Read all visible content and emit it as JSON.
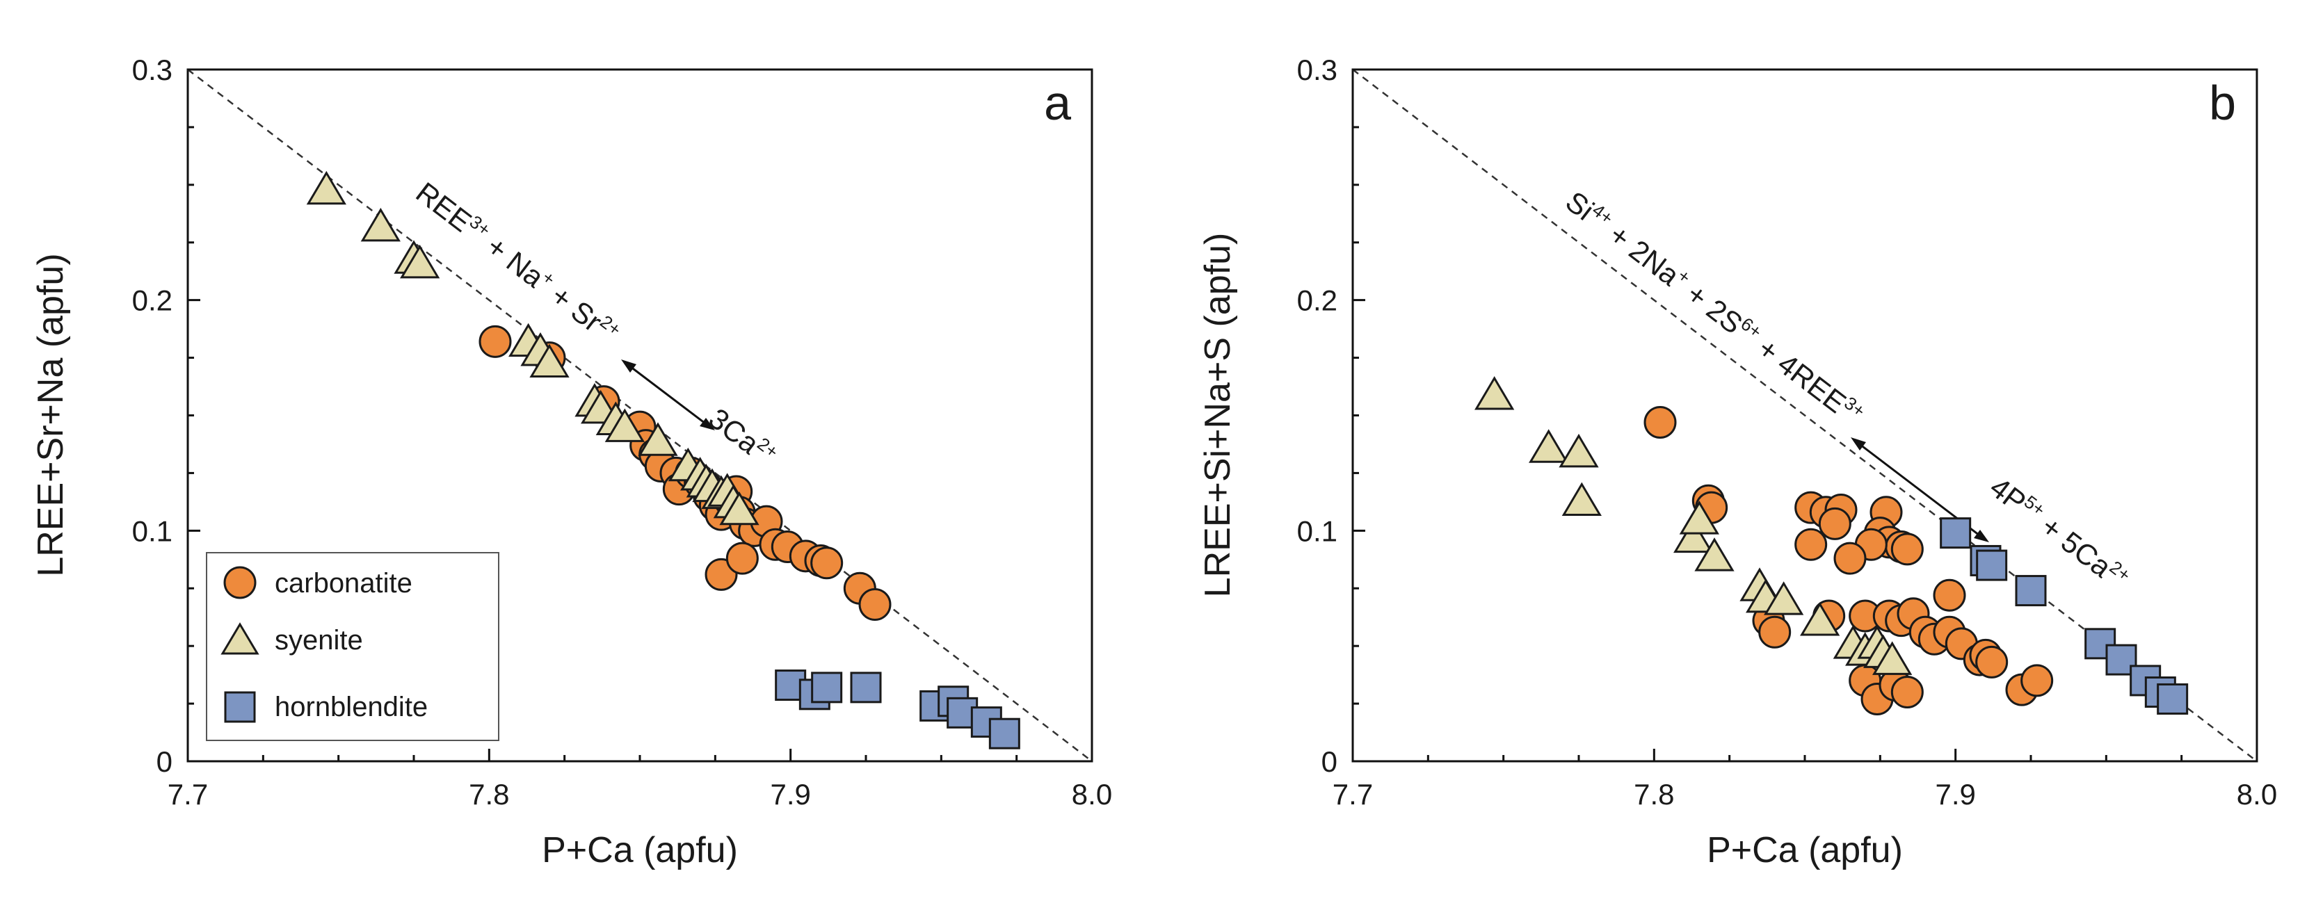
{
  "colors": {
    "carbonatite": "#EE8A3C",
    "syenite": "#E4DDAE",
    "hornblendite": "#7D95C2"
  },
  "chart_data": [
    {
      "type": "scatter",
      "panel": "a",
      "xlabel": "P+Ca (apfu)",
      "ylabel": "LREE+Sr+Na (apfu)",
      "xlim": [
        7.7,
        8.0
      ],
      "ylim": [
        0,
        0.3
      ],
      "xticks": [
        "7.7",
        "7.8",
        "7.9",
        "8.0"
      ],
      "yticks": [
        "0",
        "0.1",
        "0.2",
        "0.3"
      ],
      "reference_line": {
        "x": [
          7.7,
          8.0
        ],
        "y": [
          0.3,
          0.0
        ]
      },
      "annotation": {
        "left": [
          {
            "t": "REE"
          },
          {
            "t": "3+",
            "sup": true
          },
          {
            "t": " + Na"
          },
          {
            "t": "+",
            "sup": true
          },
          {
            "t": " + Sr"
          },
          {
            "t": "2+",
            "sup": true
          }
        ],
        "right": [
          {
            "t": "3Ca"
          },
          {
            "t": "2+",
            "sup": true
          }
        ]
      },
      "legend": {
        "position": "lower-left",
        "entries": [
          "carbonatite",
          "syenite",
          "hornblendite"
        ]
      },
      "series": [
        {
          "name": "carbonatite",
          "marker": "circle",
          "points": [
            [
              7.802,
              0.182
            ],
            [
              7.82,
              0.175
            ],
            [
              7.838,
              0.156
            ],
            [
              7.85,
              0.145
            ],
            [
              7.852,
              0.137
            ],
            [
              7.855,
              0.133
            ],
            [
              7.857,
              0.128
            ],
            [
              7.862,
              0.125
            ],
            [
              7.863,
              0.118
            ],
            [
              7.867,
              0.125
            ],
            [
              7.87,
              0.121
            ],
            [
              7.872,
              0.119
            ],
            [
              7.873,
              0.115
            ],
            [
              7.875,
              0.111
            ],
            [
              7.877,
              0.107
            ],
            [
              7.88,
              0.113
            ],
            [
              7.882,
              0.117
            ],
            [
              7.883,
              0.108
            ],
            [
              7.885,
              0.103
            ],
            [
              7.888,
              0.1
            ],
            [
              7.892,
              0.104
            ],
            [
              7.895,
              0.094
            ],
            [
              7.899,
              0.093
            ],
            [
              7.905,
              0.089
            ],
            [
              7.91,
              0.087
            ],
            [
              7.912,
              0.086
            ],
            [
              7.923,
              0.075
            ],
            [
              7.928,
              0.068
            ],
            [
              7.877,
              0.081
            ],
            [
              7.884,
              0.088
            ]
          ]
        },
        {
          "name": "syenite",
          "marker": "triangle",
          "points": [
            [
              7.746,
              0.247
            ],
            [
              7.764,
              0.231
            ],
            [
              7.775,
              0.217
            ],
            [
              7.777,
              0.215
            ],
            [
              7.813,
              0.181
            ],
            [
              7.817,
              0.177
            ],
            [
              7.82,
              0.172
            ],
            [
              7.835,
              0.155
            ],
            [
              7.837,
              0.152
            ],
            [
              7.842,
              0.147
            ],
            [
              7.845,
              0.144
            ],
            [
              7.856,
              0.138
            ],
            [
              7.866,
              0.127
            ],
            [
              7.87,
              0.123
            ],
            [
              7.872,
              0.12
            ],
            [
              7.874,
              0.118
            ],
            [
              7.877,
              0.115
            ],
            [
              7.879,
              0.116
            ],
            [
              7.881,
              0.111
            ],
            [
              7.883,
              0.108
            ]
          ]
        },
        {
          "name": "hornblendite",
          "marker": "square",
          "points": [
            [
              7.9,
              0.033
            ],
            [
              7.908,
              0.029
            ],
            [
              7.912,
              0.032
            ],
            [
              7.925,
              0.032
            ],
            [
              7.948,
              0.024
            ],
            [
              7.954,
              0.026
            ],
            [
              7.957,
              0.021
            ],
            [
              7.965,
              0.017
            ],
            [
              7.971,
              0.012
            ]
          ]
        }
      ]
    },
    {
      "type": "scatter",
      "panel": "b",
      "xlabel": "P+Ca (apfu)",
      "ylabel": "LREE+Si+Na+S (apfu)",
      "xlim": [
        7.7,
        8.0
      ],
      "ylim": [
        0,
        0.3
      ],
      "xticks": [
        "7.7",
        "7.8",
        "7.9",
        "8.0"
      ],
      "yticks": [
        "0",
        "0.1",
        "0.2",
        "0.3"
      ],
      "reference_line": {
        "x": [
          7.7,
          8.0
        ],
        "y": [
          0.3,
          0.0
        ]
      },
      "annotation": {
        "left": [
          {
            "t": "Si"
          },
          {
            "t": "4+",
            "sup": true
          },
          {
            "t": " + 2Na"
          },
          {
            "t": "+",
            "sup": true
          },
          {
            "t": " + 2S"
          },
          {
            "t": "6+",
            "sup": true
          },
          {
            "t": " + 4REE"
          },
          {
            "t": "3+",
            "sup": true
          }
        ],
        "right": [
          {
            "t": "4P"
          },
          {
            "t": "5+",
            "sup": true
          },
          {
            "t": " + 5Ca"
          },
          {
            "t": "2+",
            "sup": true
          }
        ]
      },
      "series": [
        {
          "name": "carbonatite",
          "marker": "circle",
          "points": [
            [
              7.802,
              0.147
            ],
            [
              7.818,
              0.113
            ],
            [
              7.819,
              0.11
            ],
            [
              7.852,
              0.11
            ],
            [
              7.857,
              0.108
            ],
            [
              7.862,
              0.109
            ],
            [
              7.86,
              0.103
            ],
            [
              7.877,
              0.108
            ],
            [
              7.875,
              0.099
            ],
            [
              7.878,
              0.095
            ],
            [
              7.882,
              0.093
            ],
            [
              7.884,
              0.092
            ],
            [
              7.872,
              0.094
            ],
            [
              7.865,
              0.088
            ],
            [
              7.852,
              0.094
            ],
            [
              7.858,
              0.063
            ],
            [
              7.838,
              0.061
            ],
            [
              7.84,
              0.056
            ],
            [
              7.87,
              0.063
            ],
            [
              7.878,
              0.063
            ],
            [
              7.882,
              0.061
            ],
            [
              7.886,
              0.064
            ],
            [
              7.89,
              0.056
            ],
            [
              7.893,
              0.053
            ],
            [
              7.898,
              0.056
            ],
            [
              7.902,
              0.051
            ],
            [
              7.898,
              0.072
            ],
            [
              7.908,
              0.044
            ],
            [
              7.91,
              0.046
            ],
            [
              7.912,
              0.043
            ],
            [
              7.87,
              0.035
            ],
            [
              7.874,
              0.027
            ],
            [
              7.88,
              0.033
            ],
            [
              7.884,
              0.03
            ],
            [
              7.922,
              0.031
            ],
            [
              7.927,
              0.035
            ]
          ]
        },
        {
          "name": "syenite",
          "marker": "triangle",
          "points": [
            [
              7.747,
              0.158
            ],
            [
              7.765,
              0.135
            ],
            [
              7.775,
              0.133
            ],
            [
              7.776,
              0.112
            ],
            [
              7.813,
              0.096
            ],
            [
              7.815,
              0.104
            ],
            [
              7.82,
              0.088
            ],
            [
              7.835,
              0.075
            ],
            [
              7.837,
              0.07
            ],
            [
              7.843,
              0.069
            ],
            [
              7.855,
              0.06
            ],
            [
              7.866,
              0.05
            ],
            [
              7.87,
              0.047
            ],
            [
              7.874,
              0.05
            ],
            [
              7.876,
              0.046
            ],
            [
              7.879,
              0.043
            ]
          ]
        },
        {
          "name": "hornblendite",
          "marker": "square",
          "points": [
            [
              7.9,
              0.099
            ],
            [
              7.91,
              0.087
            ],
            [
              7.912,
              0.085
            ],
            [
              7.925,
              0.074
            ],
            [
              7.948,
              0.051
            ],
            [
              7.955,
              0.044
            ],
            [
              7.963,
              0.035
            ],
            [
              7.968,
              0.03
            ],
            [
              7.972,
              0.027
            ]
          ]
        }
      ]
    }
  ]
}
